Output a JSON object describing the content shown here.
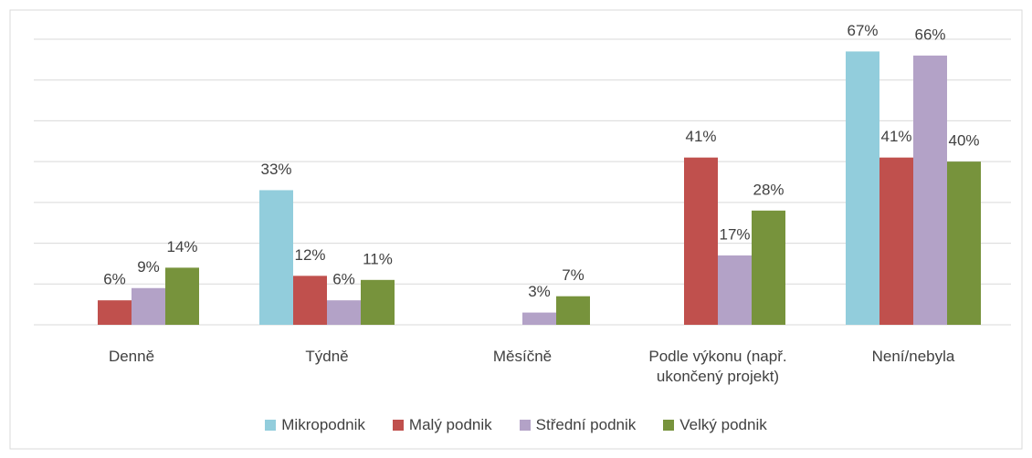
{
  "chart_data": {
    "type": "bar",
    "categories": [
      "Denně",
      "Týdně",
      "Měsíčně",
      "Podle výkonu (např. ukončený projekt)",
      "Není/nebyla"
    ],
    "series": [
      {
        "name": "Mikropodnik",
        "color": "#92cddc",
        "values": [
          null,
          33,
          null,
          null,
          67
        ],
        "value_labels": [
          null,
          "33%",
          null,
          null,
          "67%"
        ]
      },
      {
        "name": "Malý podnik",
        "color": "#c0504d",
        "values": [
          6,
          12,
          null,
          41,
          41
        ],
        "value_labels": [
          "6%",
          "12%",
          null,
          "41%",
          "41%"
        ]
      },
      {
        "name": "Střední podnik",
        "color": "#b3a2c7",
        "values": [
          9,
          6,
          3,
          17,
          66
        ],
        "value_labels": [
          "9%",
          "6%",
          "3%",
          "17%",
          "66%"
        ]
      },
      {
        "name": "Velký podnik",
        "color": "#77933c",
        "values": [
          14,
          11,
          7,
          28,
          40
        ],
        "value_labels": [
          "14%",
          "11%",
          "7%",
          "28%",
          "40%"
        ]
      }
    ],
    "ylim": [
      0,
      70
    ],
    "yticks": [
      0,
      10,
      20,
      30,
      40,
      50,
      60,
      70
    ],
    "grid": true,
    "legend": "bottom"
  }
}
